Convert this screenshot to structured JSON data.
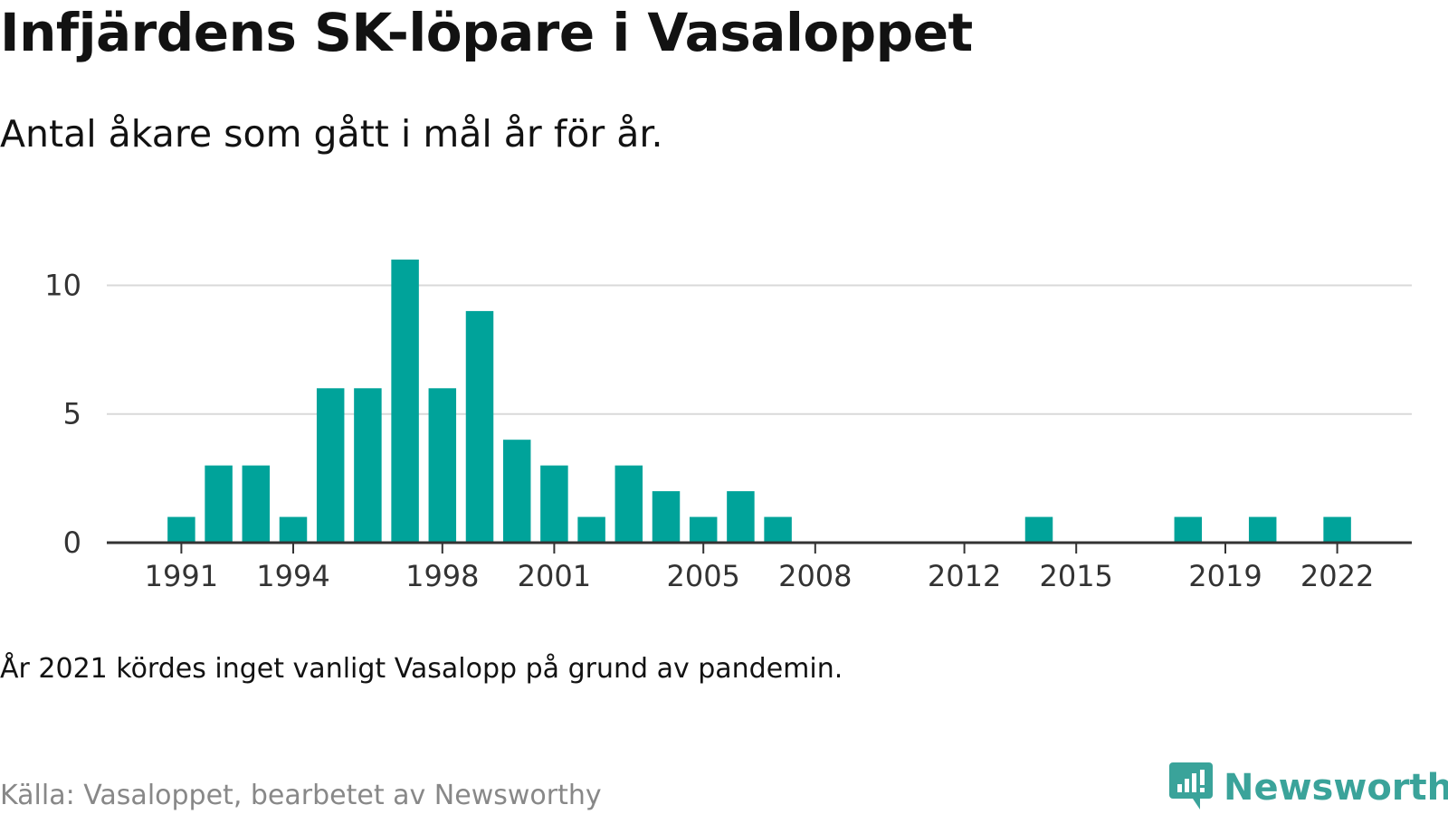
{
  "title": "Infjärdens SK-löpare i Vasaloppet",
  "subtitle": "Antal åkare som gått i mål år för år.",
  "note": "År 2021 kördes inget vanligt Vasalopp på grund av pandemin.",
  "source": "Källa: Vasaloppet, bearbetet av Newsworthy",
  "brand": {
    "name": "Newsworthy",
    "icon": "newsworthy-logo-icon",
    "color": "#3aa39a"
  },
  "chart_data": {
    "type": "bar",
    "title": "Infjärdens SK-löpare i Vasaloppet",
    "subtitle": "Antal åkare som gått i mål år för år.",
    "xlabel": "",
    "ylabel": "",
    "ylim": [
      0,
      11
    ],
    "xlim": [
      1989,
      2024
    ],
    "grid": true,
    "legend": "none",
    "bar_color": "#00a39a",
    "x_ticks": [
      1991,
      1994,
      1998,
      2001,
      2005,
      2008,
      2012,
      2015,
      2019,
      2022
    ],
    "y_ticks": [
      0,
      5,
      10
    ],
    "x": [
      1991,
      1992,
      1993,
      1994,
      1995,
      1996,
      1997,
      1998,
      1999,
      2000,
      2001,
      2002,
      2003,
      2004,
      2005,
      2006,
      2007,
      2008,
      2009,
      2010,
      2011,
      2012,
      2013,
      2014,
      2015,
      2016,
      2017,
      2018,
      2019,
      2020,
      2021,
      2022
    ],
    "values": [
      1,
      3,
      3,
      1,
      6,
      6,
      11,
      6,
      9,
      4,
      3,
      1,
      3,
      2,
      1,
      2,
      1,
      0,
      0,
      0,
      0,
      0,
      0,
      1,
      0,
      0,
      0,
      1,
      0,
      1,
      0,
      1
    ]
  }
}
